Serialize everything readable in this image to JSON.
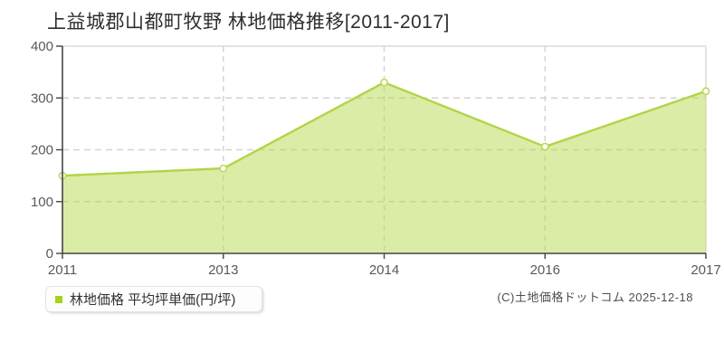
{
  "header": {
    "title": "上益城郡山都町牧野 林地価格推移[2011-2017]"
  },
  "legend": {
    "label": "林地価格 平均坪単価(円/坪)",
    "marker_color": "#a8d413"
  },
  "footer": {
    "copyright": "(C)土地価格ドットコム 2025-12-18"
  },
  "chart_data": {
    "type": "area",
    "title": "上益城郡山都町牧野 林地価格推移[2011-2017]",
    "categories": [
      "2011",
      "2013",
      "2014",
      "2016",
      "2017"
    ],
    "series": [
      {
        "name": "林地価格 平均坪単価(円/坪)",
        "values": [
          150,
          164,
          330,
          206,
          313
        ]
      }
    ],
    "xlabel": "",
    "ylabel": "平均坪単価(円/坪)",
    "ylim": [
      0,
      400
    ],
    "yticks": [
      0,
      100,
      200,
      300,
      400
    ],
    "grid": "horizontal dashed at 100/200/300, vertical dashed at inner year ticks",
    "legend_position": "bottom-left",
    "colors": {
      "line": "#b2d447",
      "fill": "rgba(184,217,78,0.5)",
      "marker_fill": "#ffffff",
      "marker_stroke": "#bcd95e",
      "axis": "#454545",
      "gridline": "#d2d2d2",
      "plot_border": "#e3e3e3",
      "tick_label": "#595959"
    }
  }
}
